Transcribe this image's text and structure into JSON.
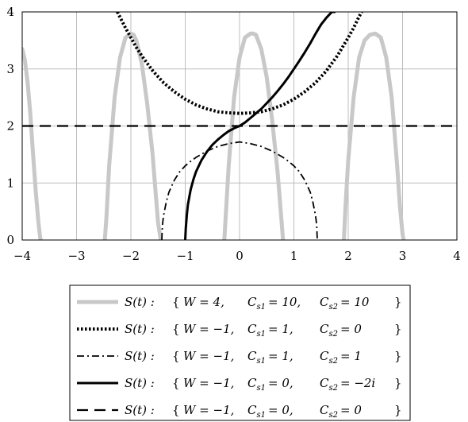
{
  "chart_data": {
    "type": "line",
    "title": "",
    "xlabel": "",
    "ylabel": "",
    "xlim": [
      -4,
      4
    ],
    "ylim": [
      0,
      4
    ],
    "grid": true,
    "legend_placement": "below",
    "x_ticks": [
      "−4",
      "−3",
      "−2",
      "−1",
      "0",
      "1",
      "2",
      "3",
      "4"
    ],
    "x_tick_values": [
      -4,
      -3,
      -2,
      -1,
      0,
      1,
      2,
      3,
      4
    ],
    "y_ticks": [
      "0",
      "1",
      "2",
      "3",
      "4"
    ],
    "y_tick_values": [
      0,
      1,
      2,
      3,
      4
    ],
    "series": [
      {
        "name": "S(t) : { W = 4, Cs1 = 10, Cs2 = 10 }",
        "legend": {
          "lhs": "S(t) :",
          "W": "W = 4,",
          "c1": "C",
          "c1sub": "s1",
          "c1val": "= 10,",
          "c2": "C",
          "c2sub": "s2",
          "c2val": "= 10"
        },
        "style": "thick-gray",
        "color": "#c8c8c8",
        "x": [
          -4.0,
          -3.95,
          -3.9,
          -3.85,
          -3.8,
          -3.75,
          -3.7,
          -3.67,
          -3.66,
          null,
          -2.48,
          -2.45,
          -2.4,
          -2.3,
          -2.2,
          -2.1,
          -2.0,
          -1.95,
          -1.9,
          -1.8,
          -1.7,
          -1.6,
          -1.55,
          -1.5,
          -1.45,
          null,
          -0.28,
          -0.25,
          -0.2,
          -0.1,
          0.0,
          0.1,
          0.2,
          0.25,
          0.3,
          0.4,
          0.5,
          0.6,
          0.7,
          0.75,
          0.8,
          null,
          1.92,
          1.95,
          2.0,
          2.1,
          2.2,
          2.3,
          2.4,
          2.5,
          2.6,
          2.7,
          2.8,
          2.9,
          2.95,
          3.0,
          3.02
        ],
        "y": [
          3.35,
          3.15,
          2.75,
          2.2,
          1.5,
          0.85,
          0.3,
          0.05,
          0.0,
          null,
          0.0,
          0.4,
          1.3,
          2.5,
          3.2,
          3.55,
          3.62,
          3.6,
          3.5,
          3.1,
          2.4,
          1.5,
          0.9,
          0.3,
          0.0,
          null,
          0.0,
          0.5,
          1.3,
          2.5,
          3.2,
          3.55,
          3.62,
          3.62,
          3.6,
          3.35,
          2.85,
          2.1,
          1.2,
          0.6,
          0.0,
          null,
          0.0,
          0.6,
          1.4,
          2.5,
          3.2,
          3.5,
          3.6,
          3.62,
          3.55,
          3.2,
          2.5,
          1.3,
          0.6,
          0.1,
          0.0
        ]
      },
      {
        "name": "S(t) : { W = −1, Cs1 = 1, Cs2 = 0 }",
        "legend": {
          "lhs": "S(t) :",
          "W": "W = −1,",
          "c1": "C",
          "c1sub": "s1",
          "c1val": "= 1,",
          "c2": "C",
          "c2sub": "s2",
          "c2val": "= 0"
        },
        "style": "dotted",
        "color": "#000000",
        "x": [
          -2.25,
          -2.1,
          -2.0,
          -1.9,
          -1.8,
          -1.6,
          -1.4,
          -1.2,
          -1.0,
          -0.8,
          -0.6,
          -0.4,
          -0.2,
          0.0,
          0.2,
          0.4,
          0.6,
          0.8,
          1.0,
          1.2,
          1.4,
          1.6,
          1.8,
          2.0,
          2.1,
          2.2,
          2.25
        ],
        "y": [
          4.0,
          3.72,
          3.55,
          3.38,
          3.23,
          2.97,
          2.76,
          2.6,
          2.47,
          2.37,
          2.3,
          2.25,
          2.23,
          2.22,
          2.23,
          2.25,
          2.3,
          2.37,
          2.47,
          2.6,
          2.76,
          2.97,
          3.23,
          3.55,
          3.72,
          3.92,
          4.0
        ]
      },
      {
        "name": "S(t) : { W = −1, Cs1 = 1, Cs2 = 1 }",
        "legend": {
          "lhs": "S(t) :",
          "W": "W = −1,",
          "c1": "C",
          "c1sub": "s1",
          "c1val": "= 1,",
          "c2": "C",
          "c2sub": "s2",
          "c2val": "= 1"
        },
        "style": "dash-dot",
        "color": "#000000",
        "x": [
          -1.43,
          -1.42,
          -1.4,
          -1.35,
          -1.3,
          -1.2,
          -1.1,
          -1.0,
          -0.9,
          -0.8,
          -0.6,
          -0.4,
          -0.2,
          0.0,
          0.2,
          0.4,
          0.6,
          0.8,
          0.9,
          1.0,
          1.1,
          1.2,
          1.3,
          1.35,
          1.4,
          1.42,
          1.43
        ],
        "y": [
          0.0,
          0.25,
          0.42,
          0.66,
          0.84,
          1.05,
          1.2,
          1.3,
          1.38,
          1.45,
          1.56,
          1.64,
          1.69,
          1.72,
          1.69,
          1.64,
          1.56,
          1.45,
          1.38,
          1.3,
          1.2,
          1.05,
          0.84,
          0.66,
          0.42,
          0.25,
          0.0
        ]
      },
      {
        "name": "S(t) : { W = −1, Cs1 = 0, Cs2 = −2i }",
        "legend": {
          "lhs": "S(t) :",
          "W": "W = −1,",
          "c1": "C",
          "c1sub": "s1",
          "c1val": "= 0,",
          "c2": "C",
          "c2sub": "s2",
          "c2val": "= −2i"
        },
        "style": "solid",
        "color": "#000000",
        "x": [
          -1.0,
          -0.99,
          -0.97,
          -0.95,
          -0.9,
          -0.85,
          -0.8,
          -0.7,
          -0.6,
          -0.5,
          -0.4,
          -0.3,
          -0.2,
          -0.1,
          0.0,
          0.1,
          0.2,
          0.3,
          0.4,
          0.5,
          0.6,
          0.7,
          0.8,
          0.9,
          1.0,
          1.1,
          1.2,
          1.3,
          1.4,
          1.5,
          1.6,
          1.7,
          1.75
        ],
        "y": [
          0.0,
          0.2,
          0.45,
          0.62,
          0.88,
          1.06,
          1.2,
          1.4,
          1.55,
          1.67,
          1.76,
          1.84,
          1.91,
          1.96,
          2.0,
          2.06,
          2.14,
          2.22,
          2.3,
          2.4,
          2.5,
          2.61,
          2.73,
          2.86,
          3.0,
          3.14,
          3.29,
          3.45,
          3.62,
          3.78,
          3.9,
          4.0,
          4.0
        ]
      },
      {
        "name": "S(t) : { W = −1, Cs1 = 0, Cs2 = 0 }",
        "legend": {
          "lhs": "S(t) :",
          "W": "W = −1,",
          "c1": "C",
          "c1sub": "s1",
          "c1val": "= 0,",
          "c2": "C",
          "c2sub": "s2",
          "c2val": "= 0"
        },
        "style": "dashed",
        "color": "#000000",
        "x": [
          -4,
          4
        ],
        "y": [
          2,
          2
        ]
      }
    ]
  }
}
